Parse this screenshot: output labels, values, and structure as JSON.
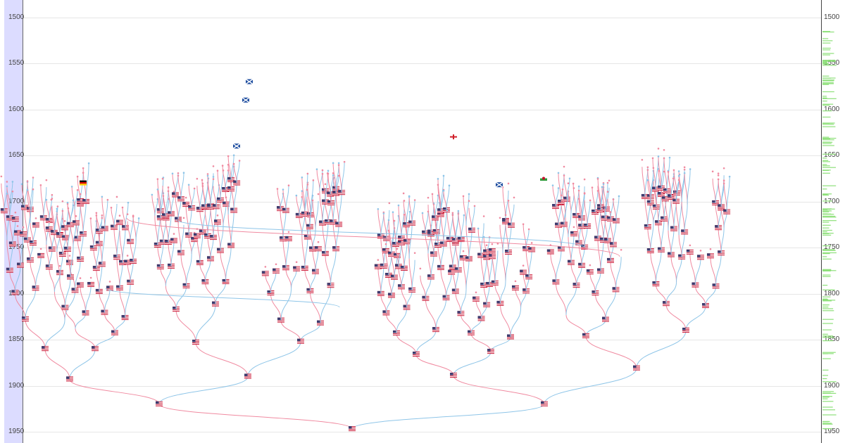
{
  "timeline": {
    "ticks": [
      "1500",
      "1550",
      "1600",
      "1650",
      "1700",
      "1750",
      "1800",
      "1850",
      "1900",
      "1950"
    ],
    "start_year": 1500,
    "end_year": 1950
  },
  "colors": {
    "father_line": "#8ec5e8",
    "mother_line": "#f08aa0",
    "grid": "#e6e6e6",
    "left_axis_bg": "#dcdcff",
    "right_axis_marks": "#8ee07a"
  },
  "icons": {
    "usa": "us-flag-icon",
    "scotland": "scotland-flag-icon",
    "england": "england-flag-icon",
    "wales": "wales-flag-icon",
    "germany": "germany-flag-icon"
  },
  "tree": {
    "root": {
      "year": 1947,
      "flag": "usa"
    },
    "people": [
      {
        "year": 1920,
        "flag": "usa"
      },
      {
        "year": 1920,
        "flag": "usa"
      },
      {
        "year": 1893,
        "flag": "usa"
      },
      {
        "year": 1890,
        "flag": "usa"
      },
      {
        "year": 1889,
        "flag": "usa"
      },
      {
        "year": 1881,
        "flag": "usa"
      },
      {
        "year": 1860,
        "flag": "usa"
      },
      {
        "year": 1860,
        "flag": "usa"
      },
      {
        "year": 1853,
        "flag": "usa"
      },
      {
        "year": 1852,
        "flag": "usa"
      },
      {
        "year": 1866,
        "flag": "usa"
      },
      {
        "year": 1863,
        "flag": "usa"
      },
      {
        "year": 1846,
        "flag": "usa"
      },
      {
        "year": 1840,
        "flag": "usa"
      },
      {
        "year": 1640,
        "flag": "scotland"
      },
      {
        "year": 1590,
        "flag": "scotland"
      },
      {
        "year": 1570,
        "flag": "scotland"
      },
      {
        "year": 1630,
        "flag": "england"
      },
      {
        "year": 1675,
        "flag": "wales"
      },
      {
        "year": 1682,
        "flag": "scotland"
      },
      {
        "year": 1680,
        "flag": "germany"
      }
    ]
  }
}
